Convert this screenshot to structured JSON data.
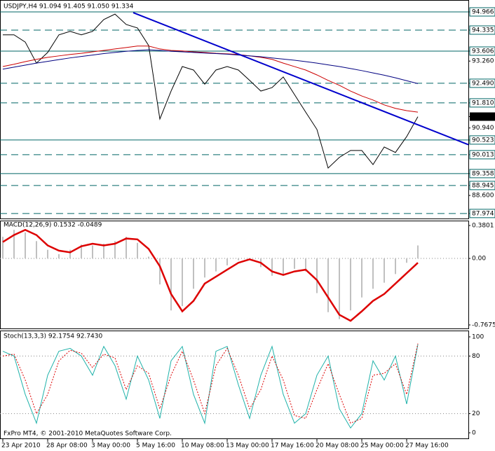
{
  "chart_data": [
    {
      "type": "line",
      "title": "USDJPY,H4  91.094 91.405 91.050 91.334",
      "categories": [
        "23 Apr 2010",
        null,
        null,
        null,
        "28 Apr 08:00",
        null,
        null,
        null,
        "3 May 00:00",
        null,
        null,
        null,
        "5 May 16:00",
        null,
        null,
        null,
        "10 May 08:00",
        null,
        null,
        null,
        "13 May 00:00",
        null,
        null,
        null,
        "17 May 16:00",
        null,
        null,
        null,
        "20 May 08:00",
        null,
        null,
        null,
        "25 May 00:00",
        null,
        null,
        null,
        "27 May 16:00",
        null
      ],
      "series": [
        {
          "color": "#000000",
          "values": [
            94.17,
            94.17,
            93.92,
            93.19,
            93.56,
            94.17,
            94.29,
            94.17,
            94.29,
            94.7,
            94.89,
            94.53,
            94.41,
            93.8,
            91.25,
            92.22,
            93.07,
            92.95,
            92.46,
            92.95,
            93.07,
            92.95,
            92.59,
            92.22,
            92.34,
            92.71,
            92.1,
            91.49,
            90.89,
            89.55,
            89.92,
            90.16,
            90.16,
            89.67,
            90.28,
            90.09,
            90.64,
            91.33
          ]
        },
        {
          "color": "#cc0000",
          "values": [
            93.07,
            93.15,
            93.24,
            93.32,
            93.39,
            93.44,
            93.49,
            93.53,
            93.58,
            93.63,
            93.68,
            93.73,
            93.78,
            93.78,
            93.68,
            93.63,
            93.61,
            93.58,
            93.56,
            93.53,
            93.51,
            93.49,
            93.44,
            93.39,
            93.32,
            93.19,
            93.07,
            92.95,
            92.78,
            92.59,
            92.42,
            92.22,
            92.05,
            91.91,
            91.74,
            91.62,
            91.54,
            91.49
          ]
        },
        {
          "color": "#000080",
          "values": [
            92.98,
            93.05,
            93.12,
            93.19,
            93.25,
            93.31,
            93.37,
            93.42,
            93.47,
            93.52,
            93.56,
            93.6,
            93.63,
            93.65,
            93.63,
            93.6,
            93.58,
            93.56,
            93.54,
            93.52,
            93.5,
            93.47,
            93.44,
            93.41,
            93.37,
            93.33,
            93.29,
            93.24,
            93.19,
            93.13,
            93.07,
            93.0,
            92.93,
            92.85,
            92.77,
            92.68,
            92.58,
            92.48
          ]
        }
      ],
      "trendline": {
        "start": 94.94,
        "end": 90.36,
        "color": "#0000cc"
      },
      "ylim": [
        87.8,
        95.33
      ],
      "yticks": [
        94.966,
        94.335,
        93.606,
        {
          "value": 93.26,
          "label": "93.260"
        },
        {
          "value": 92.49,
          "label": "92.490"
        },
        {
          "value": 91.81,
          "label": "91.810"
        },
        91.334,
        {
          "value": 90.94,
          "label": "90.940"
        },
        90.523,
        90.013,
        89.358,
        88.945,
        {
          "value": 88.6,
          "label": "88.600"
        },
        87.974
      ],
      "current": 91.334,
      "levels": [
        {
          "value": 94.966,
          "style": "solid"
        },
        {
          "value": 94.335,
          "style": "dashed"
        },
        {
          "value": 93.606,
          "style": "solid"
        },
        {
          "value": 92.49,
          "style": "dashed"
        },
        {
          "value": 91.81,
          "style": "dashed"
        },
        {
          "value": 90.523,
          "style": "solid"
        },
        {
          "value": 90.013,
          "style": "dashed"
        },
        {
          "value": 89.358,
          "style": "solid"
        },
        {
          "value": 88.945,
          "style": "dashed"
        },
        {
          "value": 87.974,
          "style": "dashed"
        }
      ],
      "level_color": "#006666"
    },
    {
      "type": "macd",
      "title": "MACD(12,26,9) 0.1532 -0.0489",
      "series": [
        {
          "kind": "bar",
          "color": "#c0c0c0",
          "values": [
            0.25,
            0.33,
            0.3,
            0.2,
            0.1,
            0.05,
            0.1,
            0.16,
            0.15,
            0.17,
            0.2,
            0.25,
            0.18,
            0.02,
            -0.3,
            -0.6,
            -0.55,
            -0.35,
            -0.22,
            -0.15,
            -0.08,
            -0.02,
            -0.02,
            -0.1,
            -0.2,
            -0.18,
            -0.12,
            -0.15,
            -0.4,
            -0.62,
            -0.7,
            -0.6,
            -0.45,
            -0.35,
            -0.28,
            -0.18,
            -0.05,
            0.15
          ]
        },
        {
          "kind": "line",
          "color": "#dd0000",
          "values": [
            0.19,
            0.27,
            0.33,
            0.27,
            0.15,
            0.09,
            0.07,
            0.14,
            0.17,
            0.15,
            0.17,
            0.23,
            0.22,
            0.11,
            -0.09,
            -0.41,
            -0.61,
            -0.49,
            -0.29,
            -0.21,
            -0.13,
            -0.05,
            -0.01,
            -0.05,
            -0.15,
            -0.19,
            -0.15,
            -0.13,
            -0.25,
            -0.45,
            -0.65,
            -0.72,
            -0.61,
            -0.49,
            -0.41,
            -0.29,
            -0.17,
            -0.05
          ]
        }
      ],
      "ylim": [
        -0.7675,
        0.3801
      ],
      "yticks": [
        0.3801,
        {
          "value": 0,
          "label": "0.00"
        },
        -0.7675
      ]
    },
    {
      "type": "stoch",
      "title": "Stoch(13,3,3) 92.1754 92.7430",
      "series": [
        {
          "kind": "line",
          "color": "#20b2aa",
          "values": [
            85,
            80,
            40,
            10,
            60,
            85,
            88,
            80,
            60,
            90,
            70,
            35,
            80,
            55,
            15,
            75,
            90,
            40,
            10,
            85,
            90,
            50,
            15,
            60,
            90,
            40,
            10,
            20,
            60,
            80,
            25,
            5,
            20,
            75,
            55,
            80,
            30,
            92
          ]
        },
        {
          "kind": "dotted",
          "color": "#dd0000",
          "values": [
            80,
            82,
            55,
            20,
            40,
            75,
            86,
            83,
            68,
            82,
            78,
            45,
            70,
            62,
            25,
            60,
            85,
            55,
            20,
            70,
            88,
            60,
            25,
            45,
            80,
            55,
            18,
            15,
            45,
            72,
            40,
            10,
            15,
            60,
            62,
            72,
            40,
            93
          ]
        }
      ],
      "ylim": [
        0,
        100
      ],
      "yticks": [
        100,
        80,
        20,
        0
      ],
      "footer": "FxPro MT4, © 2001-2010 MetaQuotes Software Corp."
    }
  ]
}
